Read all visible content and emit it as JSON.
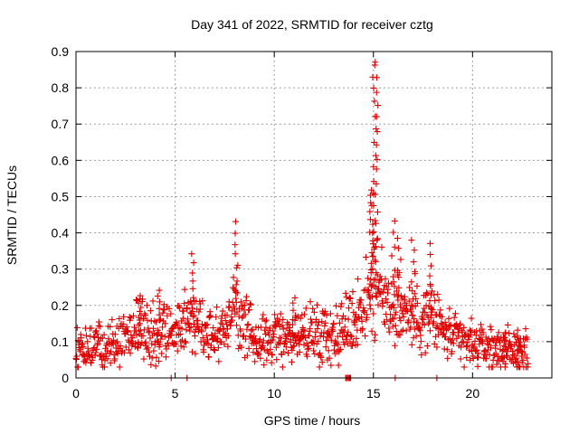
{
  "chart_data": {
    "type": "scatter",
    "title": "Day 341 of 2022, SRMTID for receiver cztg",
    "xlabel": "GPS time / hours",
    "ylabel": "SRMTID / TECUs",
    "xlim": [
      0,
      24
    ],
    "ylim": [
      0,
      0.9
    ],
    "xticks": [
      0,
      5,
      10,
      15,
      20
    ],
    "yticks": [
      0,
      0.1,
      0.2,
      0.3,
      0.4,
      0.5,
      0.6,
      0.7,
      0.8,
      0.9
    ],
    "grid": true,
    "marker": "+",
    "color": "#e00000",
    "x_range_hours": [
      0,
      22.8
    ],
    "profile": [
      {
        "t": 0.0,
        "v": 0.08
      },
      {
        "t": 0.5,
        "v": 0.08
      },
      {
        "t": 1.0,
        "v": 0.09
      },
      {
        "t": 1.5,
        "v": 0.1
      },
      {
        "t": 2.0,
        "v": 0.1
      },
      {
        "t": 2.5,
        "v": 0.12
      },
      {
        "t": 3.0,
        "v": 0.13
      },
      {
        "t": 3.5,
        "v": 0.14
      },
      {
        "t": 4.0,
        "v": 0.11
      },
      {
        "t": 4.5,
        "v": 0.14
      },
      {
        "t": 5.0,
        "v": 0.12
      },
      {
        "t": 5.5,
        "v": 0.16
      },
      {
        "t": 6.0,
        "v": 0.17
      },
      {
        "t": 6.5,
        "v": 0.13
      },
      {
        "t": 7.0,
        "v": 0.12
      },
      {
        "t": 7.5,
        "v": 0.14
      },
      {
        "t": 8.0,
        "v": 0.22
      },
      {
        "t": 8.5,
        "v": 0.13
      },
      {
        "t": 9.0,
        "v": 0.11
      },
      {
        "t": 9.5,
        "v": 0.1
      },
      {
        "t": 10.0,
        "v": 0.11
      },
      {
        "t": 10.5,
        "v": 0.12
      },
      {
        "t": 11.0,
        "v": 0.11
      },
      {
        "t": 11.5,
        "v": 0.12
      },
      {
        "t": 12.0,
        "v": 0.13
      },
      {
        "t": 12.5,
        "v": 0.13
      },
      {
        "t": 13.0,
        "v": 0.12
      },
      {
        "t": 13.5,
        "v": 0.14
      },
      {
        "t": 14.0,
        "v": 0.16
      },
      {
        "t": 14.5,
        "v": 0.2
      },
      {
        "t": 15.0,
        "v": 0.26
      },
      {
        "t": 15.5,
        "v": 0.22
      },
      {
        "t": 16.0,
        "v": 0.2
      },
      {
        "t": 16.5,
        "v": 0.19
      },
      {
        "t": 17.0,
        "v": 0.17
      },
      {
        "t": 17.5,
        "v": 0.17
      },
      {
        "t": 18.0,
        "v": 0.17
      },
      {
        "t": 18.5,
        "v": 0.13
      },
      {
        "t": 19.0,
        "v": 0.11
      },
      {
        "t": 19.5,
        "v": 0.1
      },
      {
        "t": 20.0,
        "v": 0.09
      },
      {
        "t": 20.5,
        "v": 0.09
      },
      {
        "t": 21.0,
        "v": 0.08
      },
      {
        "t": 21.5,
        "v": 0.08
      },
      {
        "t": 22.0,
        "v": 0.07
      },
      {
        "t": 22.8,
        "v": 0.07
      }
    ],
    "peaks": [
      {
        "t": 3.2,
        "v": 0.22
      },
      {
        "t": 4.2,
        "v": 0.24
      },
      {
        "t": 5.9,
        "v": 0.34
      },
      {
        "t": 8.1,
        "v": 0.43
      },
      {
        "t": 11.0,
        "v": 0.22
      },
      {
        "t": 14.9,
        "v": 0.52
      },
      {
        "t": 15.05,
        "v": 0.87
      },
      {
        "t": 15.15,
        "v": 0.86
      },
      {
        "t": 16.0,
        "v": 0.43
      },
      {
        "t": 16.3,
        "v": 0.38
      },
      {
        "t": 17.0,
        "v": 0.38
      },
      {
        "t": 17.9,
        "v": 0.37
      },
      {
        "t": 21.6,
        "v": 0.13
      },
      {
        "t": 22.3,
        "v": 0.13
      }
    ],
    "zero_points": [
      4.8,
      5.6,
      13.6,
      13.65,
      13.7,
      13.75,
      13.8,
      13.85,
      16.1,
      18.2
    ]
  }
}
